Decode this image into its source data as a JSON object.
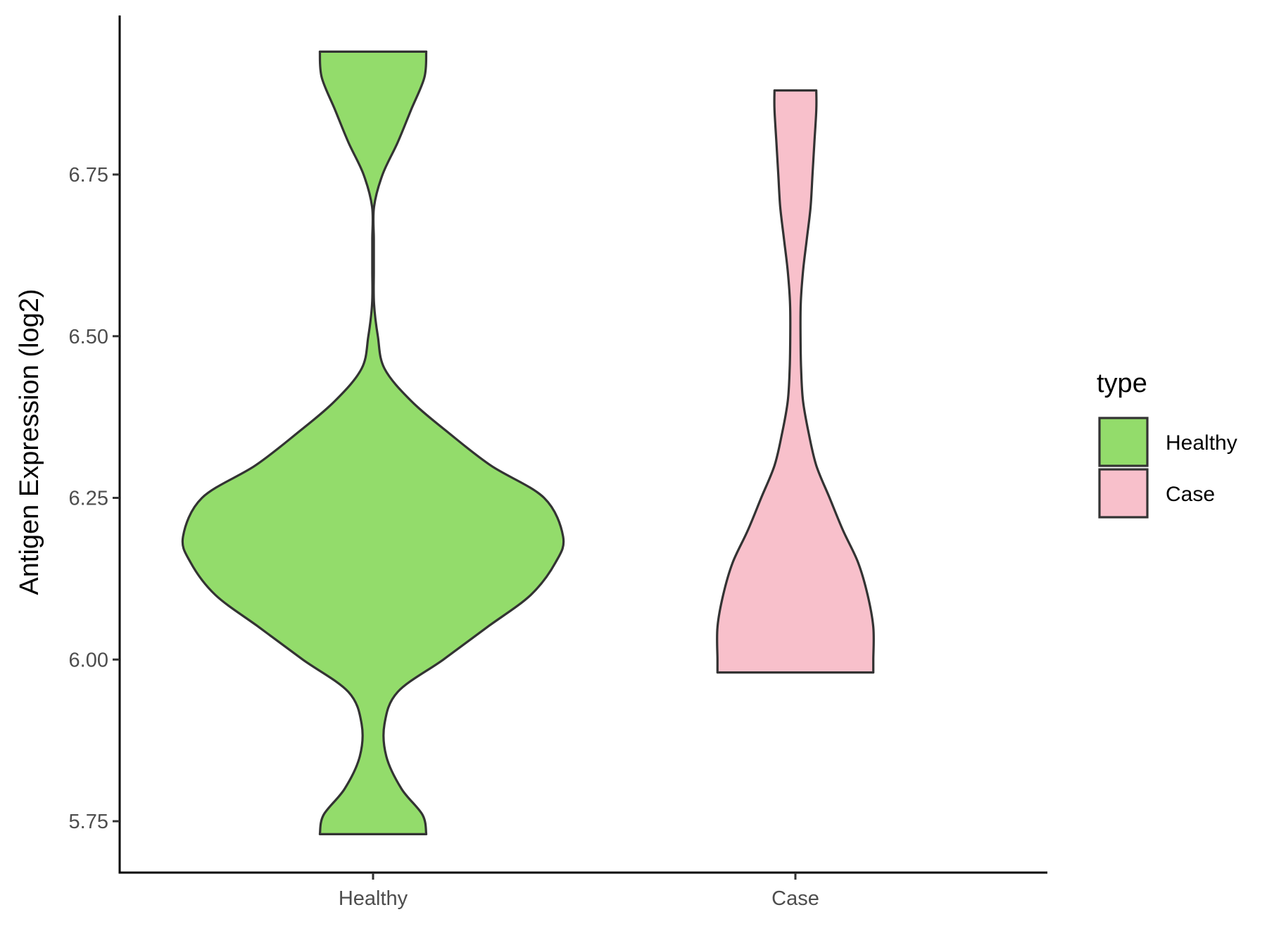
{
  "chart_data": {
    "type": "violin",
    "title": "",
    "xlabel": "",
    "ylabel": "Antigen Expression (log2)",
    "ylim": [
      5.68,
      7.0
    ],
    "yticks": [
      "5.75",
      "6.00",
      "6.25",
      "6.50",
      "6.75"
    ],
    "categories": [
      "Healthy",
      "Case"
    ],
    "grid": false,
    "legend": {
      "title": "type",
      "position": "right",
      "entries": [
        "Healthy",
        "Case"
      ]
    },
    "series": [
      {
        "name": "Healthy",
        "color": "#93dc6b",
        "min": 5.73,
        "max": 6.94,
        "profile": [
          [
            5.73,
            0.28
          ],
          [
            5.76,
            0.26
          ],
          [
            5.8,
            0.15
          ],
          [
            5.85,
            0.07
          ],
          [
            5.9,
            0.06
          ],
          [
            5.95,
            0.13
          ],
          [
            6.0,
            0.37
          ],
          [
            6.05,
            0.6
          ],
          [
            6.1,
            0.83
          ],
          [
            6.15,
            0.96
          ],
          [
            6.19,
            1.0
          ],
          [
            6.25,
            0.9
          ],
          [
            6.3,
            0.62
          ],
          [
            6.35,
            0.4
          ],
          [
            6.4,
            0.2
          ],
          [
            6.45,
            0.06
          ],
          [
            6.5,
            0.025
          ],
          [
            6.55,
            0.005
          ],
          [
            6.6,
            0.004
          ],
          [
            6.65,
            0.004
          ],
          [
            6.7,
            0.005
          ],
          [
            6.75,
            0.05
          ],
          [
            6.8,
            0.13
          ],
          [
            6.85,
            0.2
          ],
          [
            6.9,
            0.27
          ],
          [
            6.94,
            0.28
          ]
        ]
      },
      {
        "name": "Case",
        "color": "#f8c0cb",
        "min": 5.98,
        "max": 6.88,
        "profile": [
          [
            5.98,
            0.41
          ],
          [
            6.0,
            0.41
          ],
          [
            6.05,
            0.41
          ],
          [
            6.1,
            0.38
          ],
          [
            6.15,
            0.33
          ],
          [
            6.2,
            0.25
          ],
          [
            6.25,
            0.18
          ],
          [
            6.3,
            0.11
          ],
          [
            6.35,
            0.07
          ],
          [
            6.4,
            0.04
          ],
          [
            6.45,
            0.03
          ],
          [
            6.5,
            0.027
          ],
          [
            6.55,
            0.028
          ],
          [
            6.6,
            0.04
          ],
          [
            6.65,
            0.06
          ],
          [
            6.7,
            0.08
          ],
          [
            6.75,
            0.09
          ],
          [
            6.8,
            0.1
          ],
          [
            6.85,
            0.11
          ],
          [
            6.88,
            0.11
          ]
        ]
      }
    ]
  }
}
